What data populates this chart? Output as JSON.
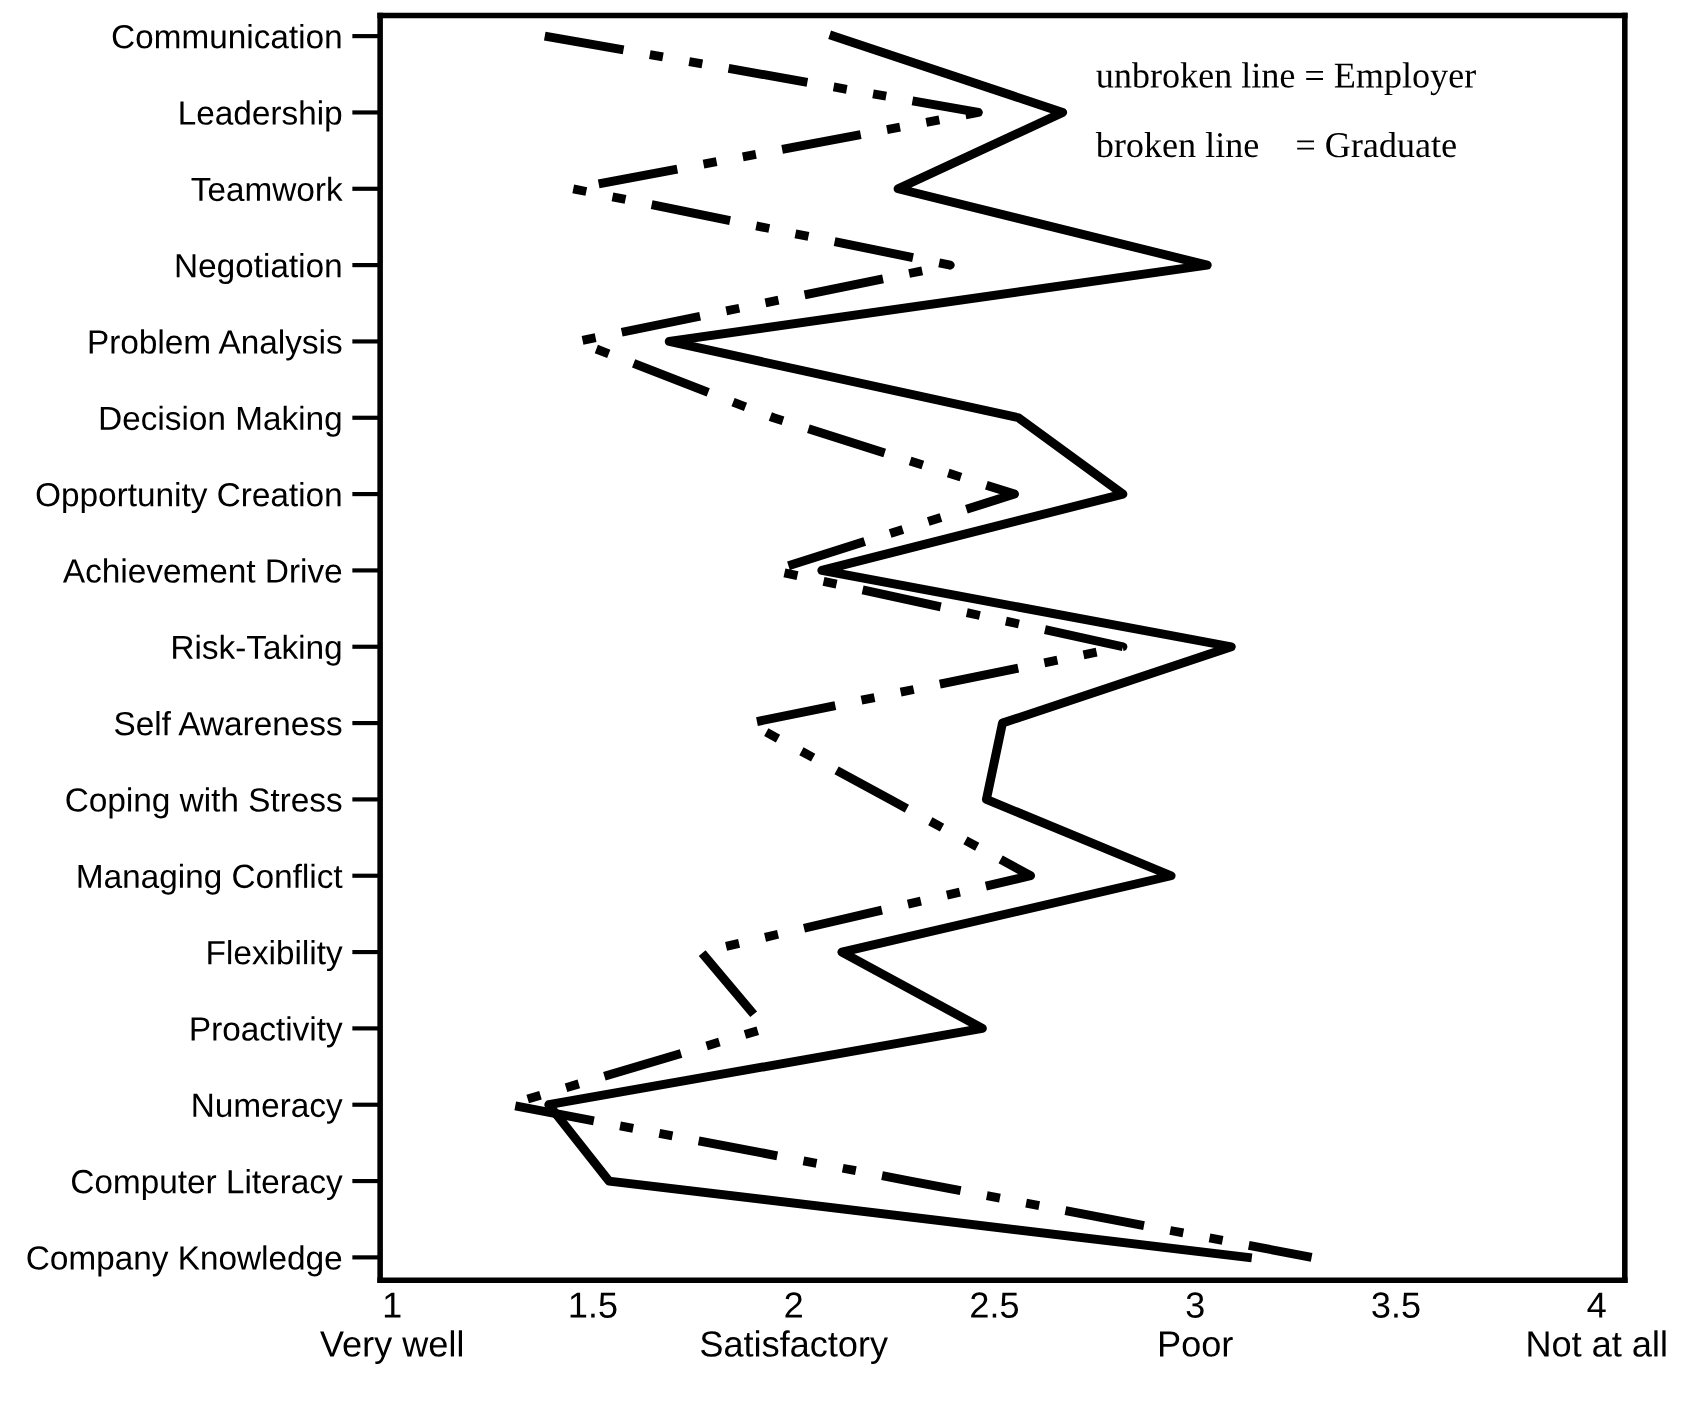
{
  "chart_data": {
    "type": "line",
    "orientation": "horizontal",
    "categories": [
      "Communication",
      "Leadership",
      "Teamwork",
      "Negotiation",
      "Problem Analysis",
      "Decision Making",
      "Opportunity Creation",
      "Achievement Drive",
      "Risk-Taking",
      "Self Awareness",
      "Coping with Stress",
      "Managing Conflict",
      "Flexibility",
      "Proactivity",
      "Numeracy",
      "Computer Literacy",
      "Company Knowledge"
    ],
    "series": [
      {
        "color": "#000000",
        "line_style": "solid",
        "values": [
          2.1,
          2.67,
          2.26,
          3.03,
          1.69,
          2.56,
          2.82,
          2.07,
          3.09,
          2.52,
          2.48,
          2.94,
          2.12,
          2.47,
          1.39,
          1.54,
          3.13
        ]
      },
      {
        "color": "#000000",
        "line_style": "dashdotdot",
        "values": [
          1.38,
          2.46,
          1.45,
          2.39,
          1.46,
          1.95,
          2.55,
          1.95,
          2.82,
          1.89,
          2.24,
          2.59,
          1.77,
          1.93,
          1.29,
          2.29,
          3.29
        ]
      }
    ],
    "xlim": [
      0.97,
      4.07
    ],
    "xticks": [
      {
        "value": 1,
        "label": "1\nVery well"
      },
      {
        "value": 1.5,
        "label": "1.5\n "
      },
      {
        "value": 2,
        "label": "2\nSatisfactory"
      },
      {
        "value": 2.5,
        "label": "2.5\n "
      },
      {
        "value": 3,
        "label": "3\nPoor"
      },
      {
        "value": 3.5,
        "label": "3.5\n "
      },
      {
        "value": 4,
        "label": "4\nNot at all"
      }
    ],
    "annotations": [
      "unbroken line = Employer",
      "broken line    = Graduate"
    ],
    "grid": false,
    "legend": false
  }
}
